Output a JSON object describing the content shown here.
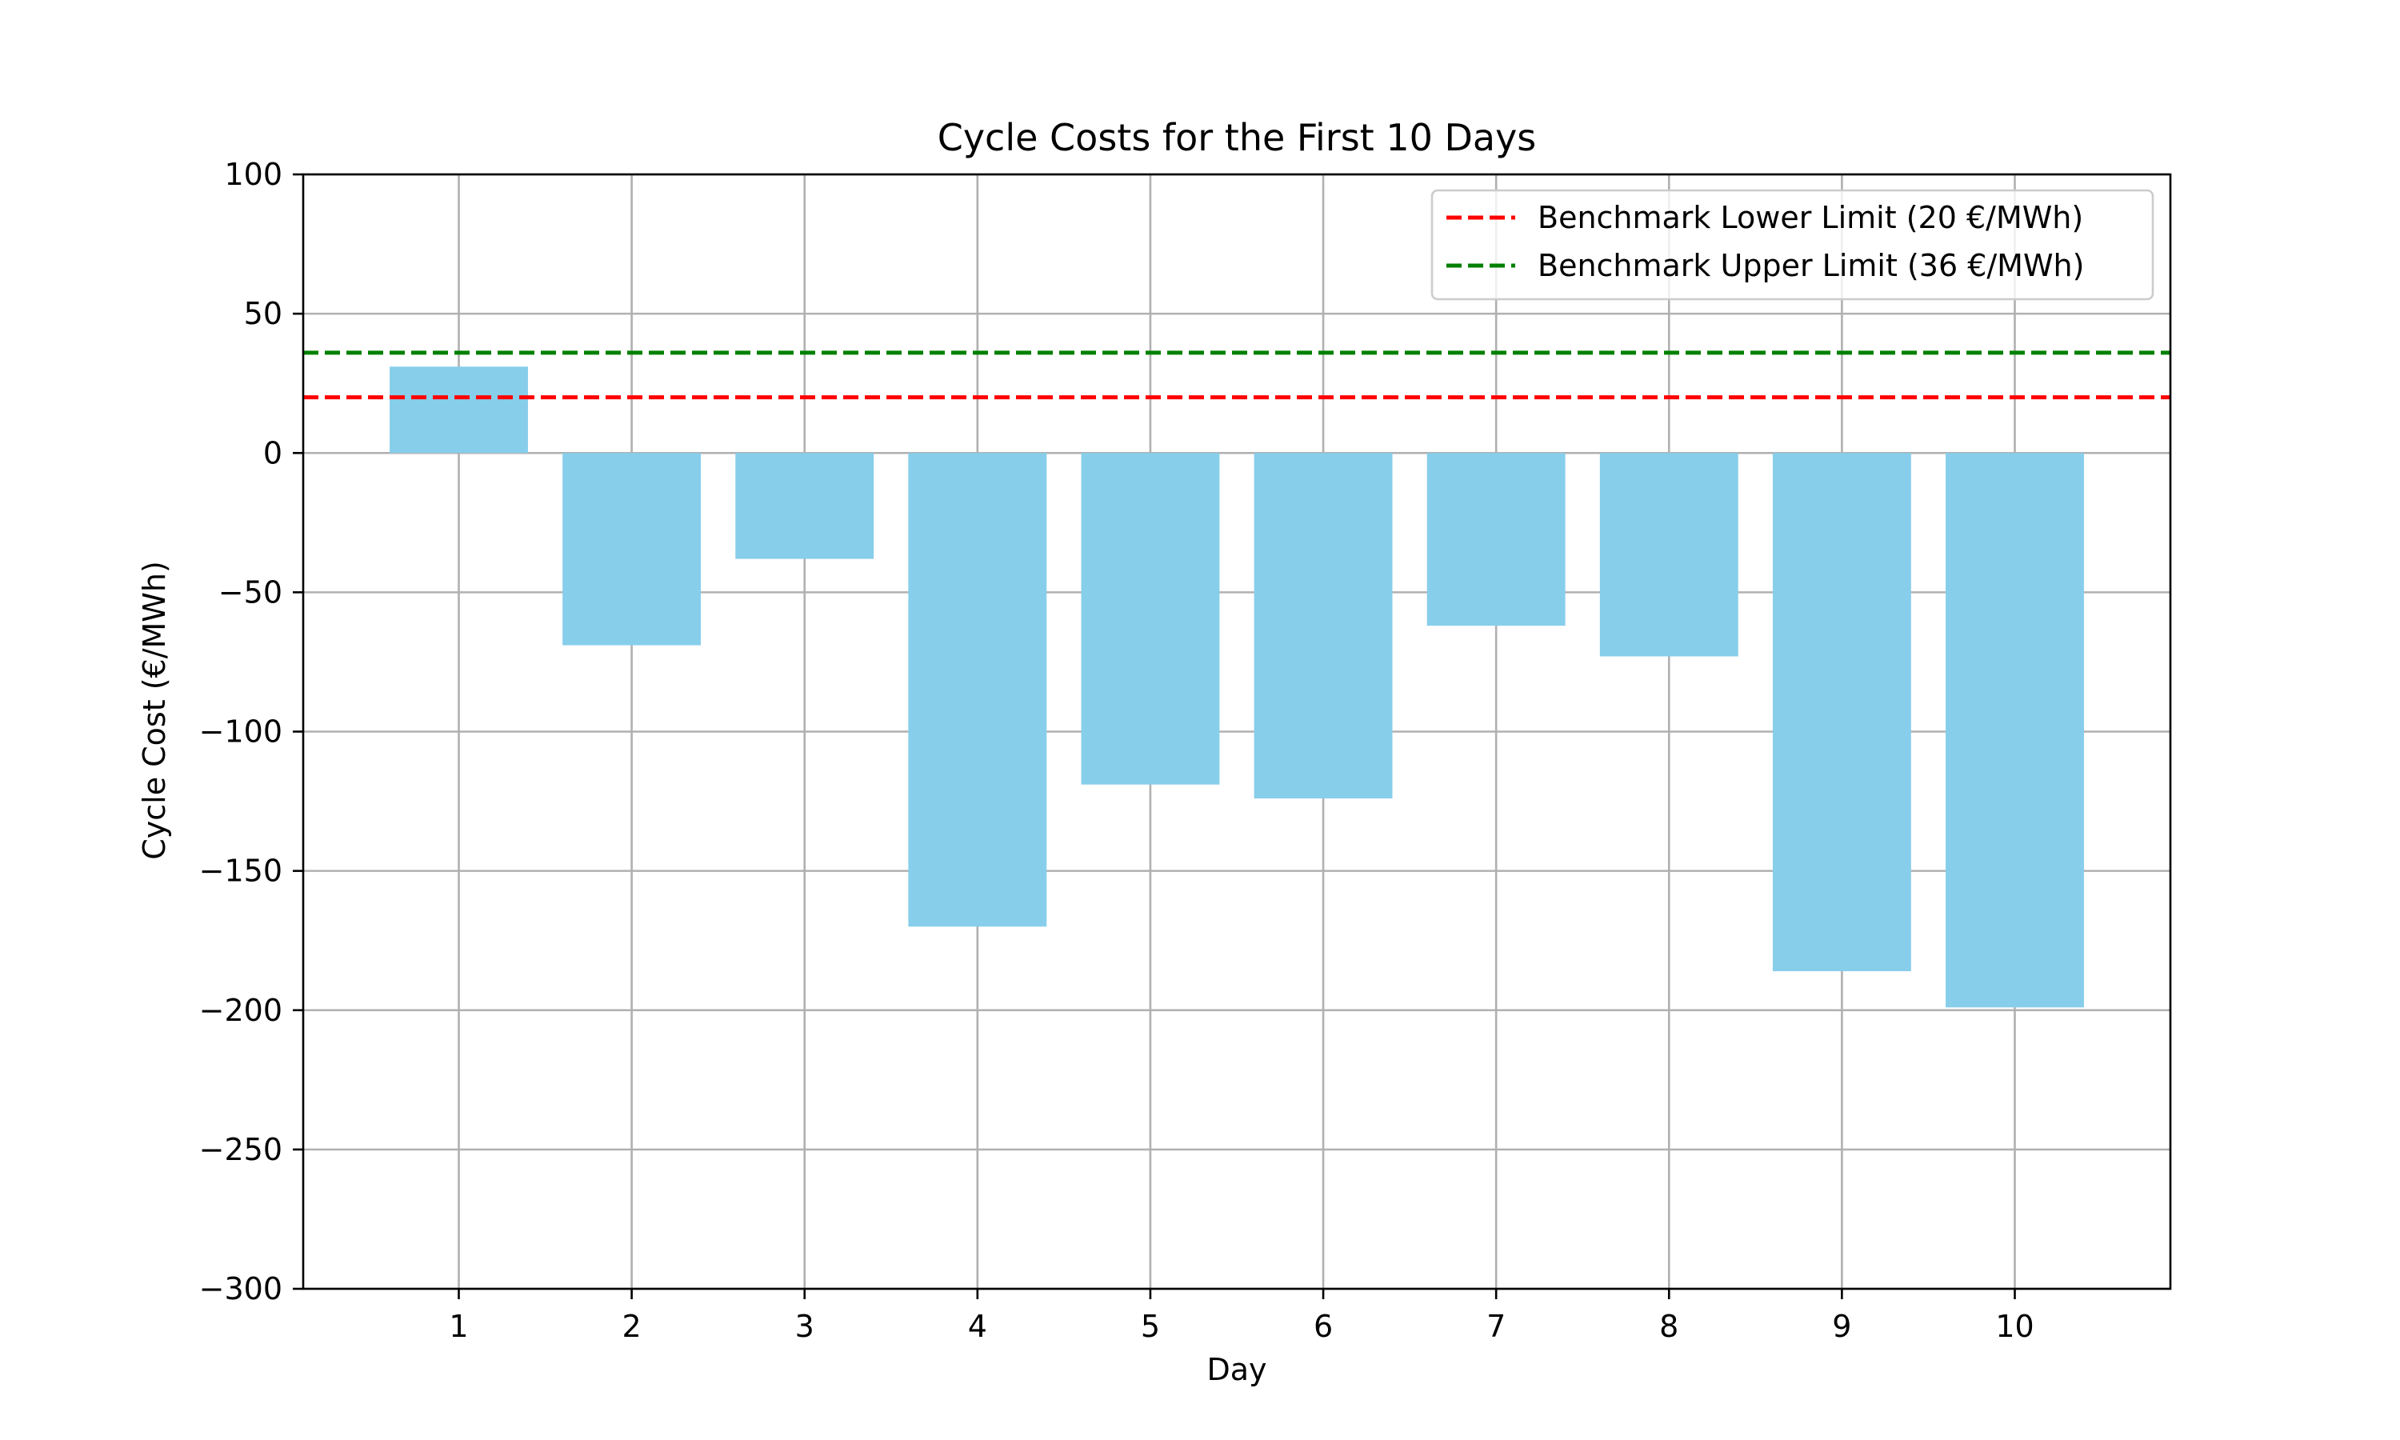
{
  "chart_data": {
    "type": "bar",
    "title": "Cycle Costs for the First 10 Days",
    "xlabel": "Day",
    "ylabel": "Cycle Cost (€/MWh)",
    "categories": [
      "1",
      "2",
      "3",
      "4",
      "5",
      "6",
      "7",
      "8",
      "9",
      "10"
    ],
    "values": [
      31,
      -69,
      -38,
      -170,
      -119,
      -124,
      -62,
      -73,
      -186,
      -199
    ],
    "bar_color": "#87CEEB",
    "ylim": [
      -300,
      100
    ],
    "xlim": [
      0.1,
      10.9
    ],
    "yticks": [
      100,
      50,
      0,
      -50,
      -100,
      -150,
      -200,
      -250,
      -300
    ],
    "ytick_labels": [
      "100",
      "50",
      "0",
      "−50",
      "−100",
      "−150",
      "−200",
      "−250",
      "−300"
    ],
    "grid": true,
    "reference_lines": [
      {
        "label": "Benchmark Lower Limit (20 €/MWh)",
        "y": 20,
        "color": "#ff0000",
        "style": "dashed"
      },
      {
        "label": "Benchmark Upper Limit (36 €/MWh)",
        "y": 36,
        "color": "#008000",
        "style": "dashed"
      }
    ],
    "legend_position": "top-right"
  }
}
